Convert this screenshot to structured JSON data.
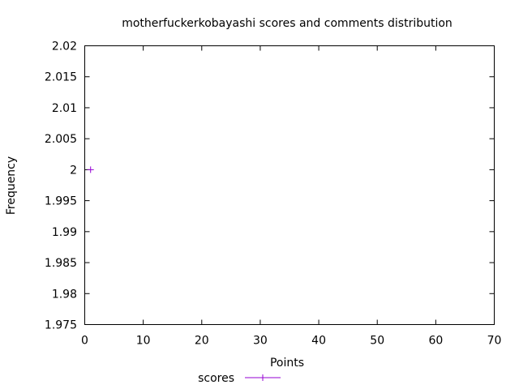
{
  "chart_data": {
    "type": "line",
    "title": "motherfuckerkobayashi scores and comments distribution",
    "xlabel": "Points",
    "ylabel": "Frequency",
    "xlim": [
      0,
      70
    ],
    "ylim": [
      1.975,
      2.02
    ],
    "x_ticks": [
      0,
      10,
      20,
      30,
      40,
      50,
      60,
      70
    ],
    "x_tick_labels": [
      "0",
      "10",
      "20",
      "30",
      "40",
      "50",
      "60",
      "70"
    ],
    "y_ticks": [
      1.975,
      1.98,
      1.985,
      1.99,
      1.995,
      2,
      2.005,
      2.01,
      2.015,
      2.02
    ],
    "y_tick_labels": [
      "1.975",
      "1.98",
      "1.985",
      "1.99",
      "1.995",
      "2",
      "2.005",
      "2.01",
      "2.015",
      "2.02"
    ],
    "grid": false,
    "legend_position": "bottom-center",
    "series": [
      {
        "name": "scores",
        "color": "#9400d3",
        "marker": "plus",
        "points": [
          {
            "x": 1,
            "y": 2
          }
        ]
      }
    ]
  }
}
